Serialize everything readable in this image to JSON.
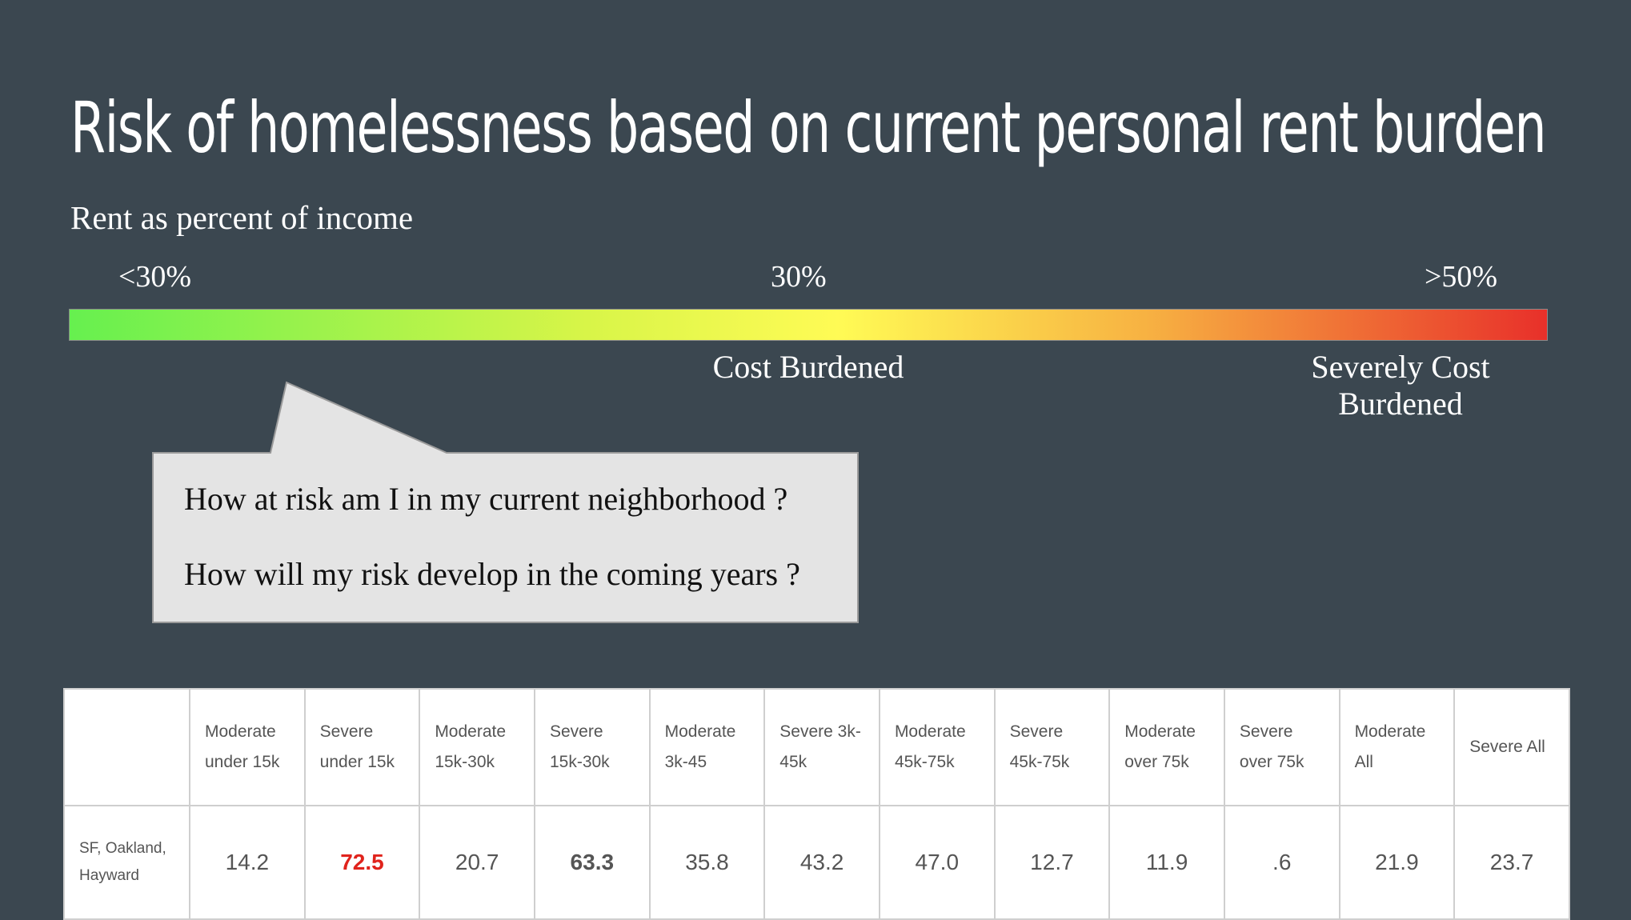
{
  "title": "Risk of homelessness based on current personal rent burden",
  "subtitle": "Rent as percent of income",
  "scale": {
    "left_label": "<30%",
    "mid_label": "30%",
    "right_label": ">50%",
    "cost_burdened": "Cost Burdened",
    "severely_cost_burdened": "Severely Cost Burdened",
    "gradient_colors": [
      "#66f04f",
      "#fffb55",
      "#e8302a"
    ]
  },
  "callout": {
    "question_1": "How at risk am I in my current neighborhood ?",
    "question_2": "How will my risk develop in the coming years ?"
  },
  "table": {
    "columns": [
      "Moderate under 15k",
      "Severe under 15k",
      "Moderate 15k-30k",
      "Severe 15k-30k",
      "Moderate 3k-45",
      "Severe 3k-45k",
      "Moderate 45k-75k",
      "Severe 45k-75k",
      "Moderate over 75k",
      "Severe over 75k",
      "Moderate All",
      "Severe All"
    ],
    "row_label": "SF, Oakland, Hayward",
    "values": [
      "14.2",
      "72.5",
      "20.7",
      "63.3",
      "35.8",
      "43.2",
      "47.0",
      "12.7",
      "11.9",
      ".6",
      "21.9",
      "23.7"
    ],
    "highlight_color": "#e0231c"
  }
}
